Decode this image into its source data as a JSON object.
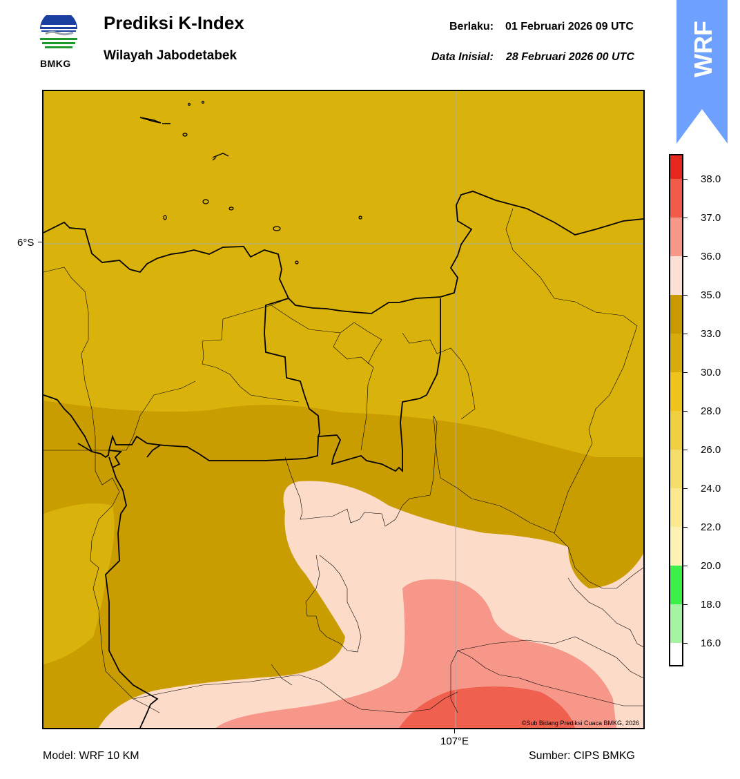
{
  "header": {
    "title": "Prediksi K-Index",
    "subtitle": "Wilayah Jabodetabek",
    "valid_label": "Berlaku:",
    "valid_value": "01 Februari 2026 09 UTC",
    "init_label": "Data Inisial:",
    "init_value": "28 Februari 2026 00 UTC"
  },
  "logo": {
    "text": "BMKG",
    "icon": "bmkg-logo-icon"
  },
  "badge": {
    "text": "WRF",
    "color": "#6ea0ff",
    "icon": "wrf-arrow-badge"
  },
  "map": {
    "lat_label": "6°S",
    "lon_label": "107°E",
    "copyright": "©Sub Bidang Prediksi Cuaca BMKG, 2026"
  },
  "colorbar": {
    "labels": [
      "38.0",
      "37.0",
      "36.0",
      "35.0",
      "33.0",
      "30.0",
      "28.0",
      "26.0",
      "24.0",
      "22.0",
      "20.0",
      "18.0",
      "16.0"
    ],
    "colors_top_to_bottom": [
      "#e8281e",
      "#f25a4a",
      "#f7978a",
      "#fde0d5",
      "#c89a00",
      "#d8aa0c",
      "#eec41a",
      "#f0d040",
      "#f5dd6a",
      "#fae98f",
      "#fdf2b3",
      "#3bf04a",
      "#a6f3a4",
      "#ffffff"
    ]
  },
  "footer": {
    "model": "Model: WRF 10 KM",
    "source": "Sumber: CIPS BMKG"
  }
}
